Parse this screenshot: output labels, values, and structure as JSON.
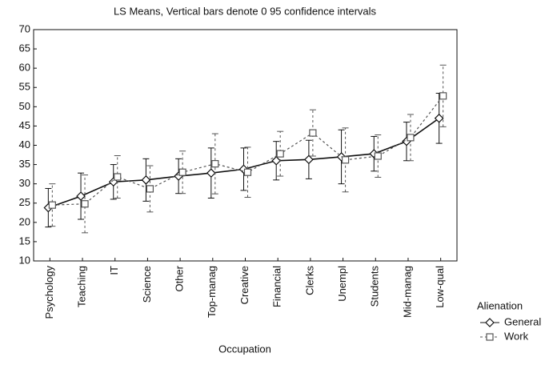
{
  "chart_data": {
    "type": "line",
    "title": "LS Means, Vertical bars denote 0 95 confidence intervals",
    "x_label": "Occupation",
    "legend_title": "Alienation",
    "categories": [
      "Psychology",
      "Teaching",
      "IT",
      "Science",
      "Other",
      "Top-manag",
      "Creative",
      "Financial",
      "Clerks",
      "Unempl",
      "Students",
      "Mid-manag",
      "Low-qual"
    ],
    "series": [
      {
        "name": "General",
        "color": "#111111",
        "style": "solid",
        "marker": "diamond",
        "values": [
          23.8,
          26.8,
          30.5,
          31,
          32,
          32.8,
          33.8,
          36,
          36.3,
          37,
          37.8,
          41,
          47
        ],
        "errors": [
          5,
          6,
          4.5,
          5.5,
          4.5,
          6.5,
          5.5,
          5,
          5,
          7,
          4.5,
          5,
          6.5
        ]
      },
      {
        "name": "Work",
        "color": "#555555",
        "style": "dashed",
        "marker": "square",
        "values": [
          24.5,
          24.8,
          31.8,
          28.7,
          33,
          35.2,
          33,
          37.8,
          43.2,
          36.2,
          37.2,
          42,
          52.8
        ],
        "errors": [
          5.5,
          7.5,
          5.5,
          6,
          5.5,
          7.8,
          6.5,
          5.8,
          6,
          8.3,
          5.5,
          6,
          8
        ]
      }
    ],
    "ylim": [
      10,
      70
    ],
    "yticks": [
      10,
      15,
      20,
      25,
      30,
      35,
      40,
      45,
      50,
      55,
      60,
      65,
      70
    ],
    "legend": "bottom-right"
  }
}
